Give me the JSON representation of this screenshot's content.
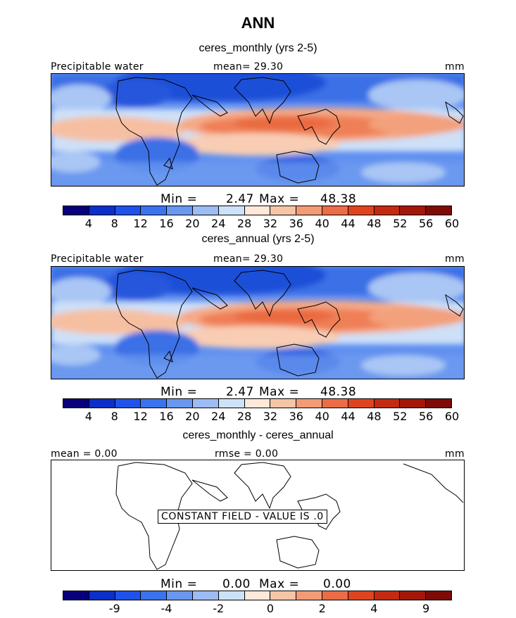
{
  "title": "ANN",
  "panels": [
    {
      "subtitle": "ceres_monthly (yrs 2-5)",
      "label_left": "Precipitable water",
      "label_center": "mean=  29.30",
      "label_right": "mm",
      "min_label": "Min =",
      "min_value": "2.47",
      "max_label": "Max =",
      "max_value": "48.38"
    },
    {
      "subtitle": "ceres_annual (yrs 2-5)",
      "label_left": "Precipitable water",
      "label_center": "mean=  29.30",
      "label_right": "mm",
      "min_label": "Min =",
      "min_value": "2.47",
      "max_label": "Max =",
      "max_value": "48.38"
    },
    {
      "subtitle": "ceres_monthly - ceres_annual",
      "label_left": "mean =   0.00",
      "label_center": "rmse =   0.00",
      "label_right": "mm",
      "min_label": "Min =",
      "min_value": "0.00",
      "max_label": "Max =",
      "max_value": "0.00",
      "notice": "CONSTANT FIELD - VALUE IS .0"
    }
  ],
  "colorbar_colors": [
    "#08007a",
    "#0b2fc8",
    "#1f52ea",
    "#3a73ee",
    "#6a97f0",
    "#9cbcf3",
    "#cde2f8",
    "#fde8da",
    "#f8c4a6",
    "#f29b76",
    "#ec6c47",
    "#e0441f",
    "#c42a10",
    "#a31708",
    "#7e0b05"
  ],
  "colorbar_ticks_abs": [
    "4",
    "8",
    "12",
    "16",
    "20",
    "24",
    "28",
    "32",
    "36",
    "40",
    "44",
    "48",
    "52",
    "56",
    "60"
  ],
  "colorbar_ticks_diff": [
    "-9",
    "-4",
    "-2",
    "0",
    "2",
    "4",
    "9"
  ],
  "chart_data": {
    "type": "heatmap",
    "title": "ANN",
    "units": "mm",
    "variable": "Precipitable water",
    "panels": [
      {
        "name": "ceres_monthly (yrs 2-5)",
        "mean": 29.3,
        "min": 2.47,
        "max": 48.38
      },
      {
        "name": "ceres_annual (yrs 2-5)",
        "mean": 29.3,
        "min": 2.47,
        "max": 48.38
      },
      {
        "name": "ceres_monthly - ceres_annual",
        "mean": 0.0,
        "rmse": 0.0,
        "min": 0.0,
        "max": 0.0
      }
    ],
    "contour_levels": [
      4,
      8,
      12,
      16,
      20,
      24,
      28,
      32,
      36,
      40,
      44,
      48,
      52,
      56,
      60
    ],
    "diff_levels": [
      -9,
      -4,
      -2,
      0,
      2,
      4,
      9
    ]
  }
}
